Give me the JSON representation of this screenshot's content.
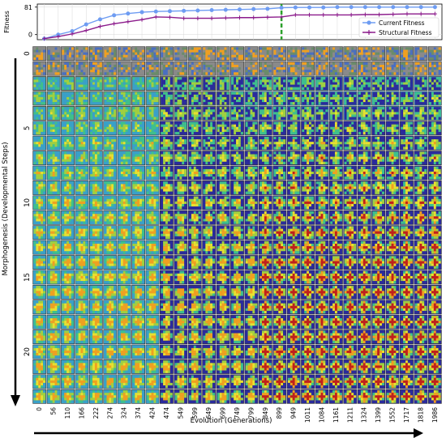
{
  "chart_data": [
    {
      "type": "line",
      "ylabel": "Fitness",
      "yticks": [
        0,
        81
      ],
      "ylim": [
        -15,
        90
      ],
      "x": [
        0,
        56,
        110,
        166,
        222,
        274,
        324,
        374,
        424,
        474,
        549,
        599,
        649,
        699,
        749,
        799,
        849,
        899,
        949,
        1011,
        1084,
        1161,
        1211,
        1324,
        1399,
        1552,
        1717,
        1818,
        1986
      ],
      "grid": true,
      "legend_position": "lower-right",
      "marker_generation": 899,
      "series": [
        {
          "name": "Current Fitness",
          "color": "#6e9cf2",
          "marker": "circle",
          "values": [
            -12,
            0,
            10,
            30,
            45,
            57,
            62,
            66,
            68,
            69,
            70,
            71,
            72,
            73,
            74,
            75,
            76,
            79,
            80,
            80,
            80,
            81,
            81,
            81,
            81,
            81,
            81,
            81,
            81
          ]
        },
        {
          "name": "Structural Fitness",
          "color": "#8b1a8b",
          "marker": "plus",
          "values": [
            -12,
            -6,
            2,
            12,
            24,
            32,
            38,
            44,
            52,
            51,
            48,
            48,
            48,
            49,
            50,
            50,
            51,
            52,
            58,
            58,
            58,
            58,
            58,
            59,
            59,
            60,
            61,
            61,
            61
          ]
        }
      ]
    },
    {
      "type": "heatmap",
      "xlabel": "Evolution (Generations)",
      "ylabel": "Morphogenesis (Developmental Steps)",
      "x_tick_labels": [
        "0",
        "56",
        "110",
        "166",
        "222",
        "274",
        "324",
        "374",
        "424",
        "474",
        "549",
        "599",
        "649",
        "699",
        "749",
        "799",
        "849",
        "899",
        "949",
        "1011",
        "1084",
        "1161",
        "1211",
        "1324",
        "1399",
        "1552",
        "1717",
        "1818",
        "1986"
      ],
      "y_tick_labels": [
        "0",
        "5",
        "10",
        "15",
        "20"
      ],
      "rows": 24,
      "columns": 29,
      "colors": [
        "#2b2b9c",
        "#4a6fc0",
        "#3aa0c8",
        "#8a8a8a",
        "#6a8c6a",
        "#3fc08c",
        "#a0d040",
        "#e8e030",
        "#f0a020",
        "#e06020",
        "#c0201c"
      ]
    }
  ]
}
